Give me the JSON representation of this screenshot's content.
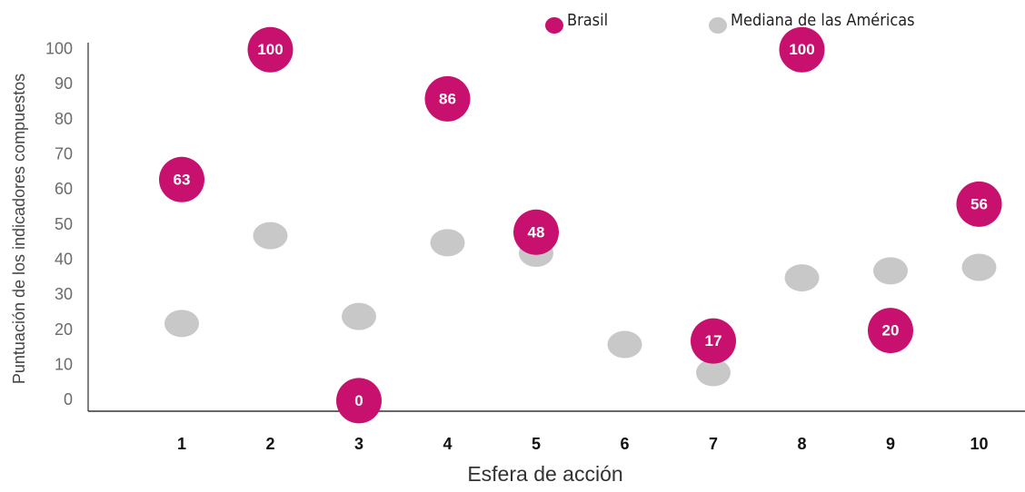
{
  "chart_data": {
    "type": "scatter",
    "x_label": "Esfera de acción",
    "y_label": "Puntuación de los indicadores compuestos",
    "categories": [
      "1",
      "2",
      "3",
      "4",
      "5",
      "6",
      "7",
      "8",
      "9",
      "10"
    ],
    "series": [
      {
        "name": "Brasil",
        "color": "#c8106e",
        "values": [
          63,
          100,
          0,
          86,
          48,
          null,
          17,
          100,
          20,
          56
        ]
      },
      {
        "name": "Mediana de las Américas",
        "color": "#c8c8c8",
        "values": [
          22,
          47,
          24,
          45,
          42,
          16,
          8,
          35,
          37,
          38
        ]
      }
    ],
    "ylim": [
      -3,
      102
    ],
    "yticks": [
      0,
      10,
      20,
      30,
      40,
      50,
      60,
      70,
      80,
      90,
      100
    ],
    "grid": false
  }
}
